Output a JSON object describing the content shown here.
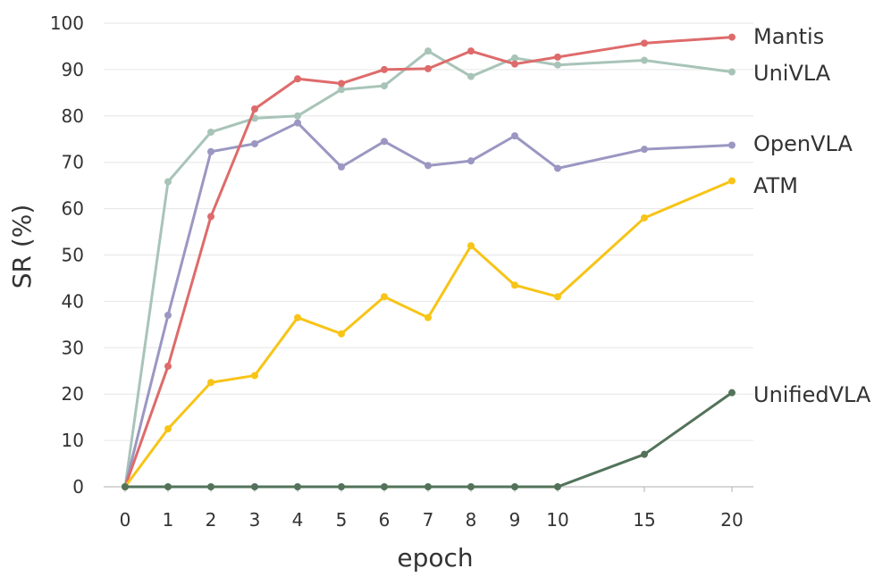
{
  "chart_data": {
    "type": "line",
    "title": "",
    "xlabel": "epoch",
    "ylabel": "SR (%)",
    "ylim": [
      0,
      100
    ],
    "yticks": [
      "0",
      "10",
      "20",
      "30",
      "40",
      "50",
      "60",
      "70",
      "80",
      "90",
      "100"
    ],
    "x": [
      "0",
      "1",
      "2",
      "3",
      "4",
      "5",
      "6",
      "7",
      "8",
      "9",
      "10",
      "15",
      "20"
    ],
    "grid": "horizontal",
    "legend": "inline-right",
    "series": [
      {
        "name": "UniVLA",
        "color": "#a8c4b8",
        "values": [
          0,
          65.8,
          76.5,
          79.5,
          80,
          85.7,
          86.5,
          94,
          88.5,
          92.5,
          91,
          92,
          89.5
        ]
      },
      {
        "name": "OpenVLA",
        "color": "#9b97c2",
        "values": [
          0,
          37,
          72.3,
          74,
          78.5,
          69,
          74.5,
          69.3,
          70.3,
          75.7,
          68.7,
          72.8,
          73.7
        ]
      },
      {
        "name": "Mantis",
        "color": "#de6b6b",
        "values": [
          0,
          26,
          58.3,
          81.5,
          88,
          87,
          90,
          90.2,
          94,
          91.2,
          92.7,
          95.7,
          97
        ]
      },
      {
        "name": "ATM",
        "color": "#f7c417",
        "values": [
          0,
          12.5,
          22.5,
          24,
          36.5,
          33,
          41,
          36.5,
          52,
          43.5,
          41,
          58,
          66
        ]
      },
      {
        "name": "UnifiedVLA",
        "color": "#52735a",
        "values": [
          0,
          0,
          0,
          0,
          0,
          0,
          0,
          0,
          0,
          0,
          0,
          7,
          20.3
        ]
      }
    ]
  }
}
